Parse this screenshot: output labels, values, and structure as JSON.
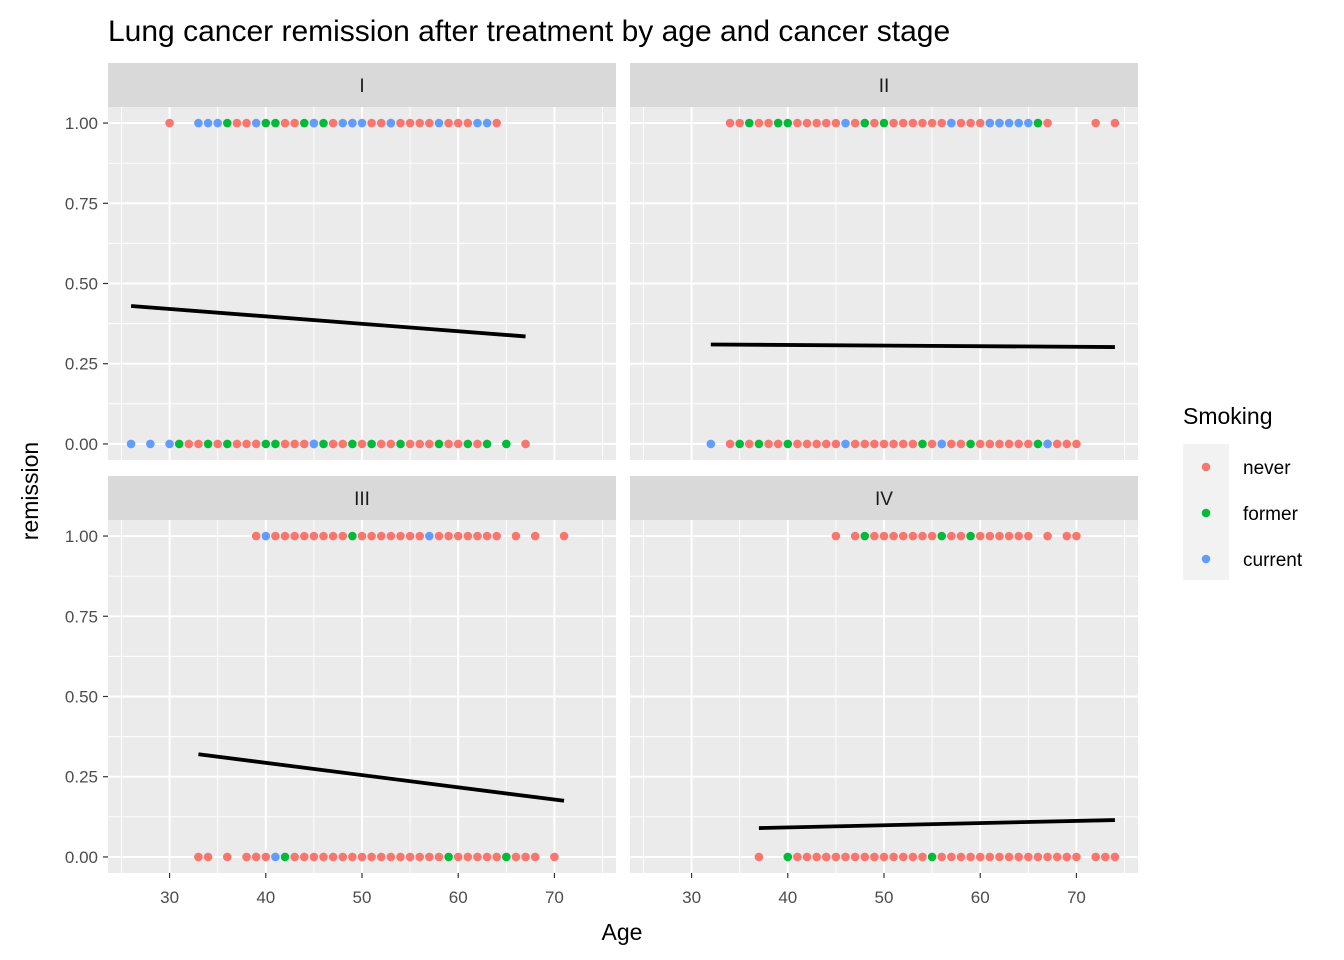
{
  "chart_data": {
    "type": "scatter",
    "title": "Lung cancer remission after treatment by age and cancer stage",
    "xlabel": "Age",
    "ylabel": "remission",
    "xlim": [
      23.6,
      76.4
    ],
    "ylim": [
      -0.05,
      1.05
    ],
    "x_ticks": [
      30,
      40,
      50,
      60,
      70
    ],
    "x_tick_labels": [
      "30",
      "40",
      "50",
      "60",
      "70"
    ],
    "y_ticks": [
      0,
      0.25,
      0.5,
      0.75,
      1.0
    ],
    "y_tick_labels": [
      "0.00",
      "0.25",
      "0.50",
      "0.75",
      "1.00"
    ],
    "grid": true,
    "legend": {
      "title": "Smoking",
      "position": "right",
      "entries": [
        {
          "label": "never",
          "color": "#F8766D"
        },
        {
          "label": "former",
          "color": "#00BA38"
        },
        {
          "label": "current",
          "color": "#619CFF"
        }
      ]
    },
    "line_color": "#000000",
    "panels": [
      {
        "label": "I",
        "fit_line": [
          [
            26,
            0.43
          ],
          [
            67,
            0.335
          ]
        ],
        "points_remission_1": {
          "never": [
            30,
            37,
            38,
            42,
            43,
            45,
            47,
            49,
            51,
            52,
            53,
            54,
            55,
            56,
            57,
            59,
            60,
            61,
            64
          ],
          "former": [
            36,
            40,
            41,
            44,
            46
          ],
          "current": [
            33,
            34,
            35,
            39,
            45,
            48,
            49,
            50,
            53,
            58,
            62,
            63
          ]
        },
        "points_remission_0": {
          "never": [
            32,
            33,
            35,
            37,
            38,
            39,
            42,
            43,
            44,
            45,
            47,
            48,
            50,
            52,
            53,
            55,
            56,
            57,
            59,
            60,
            62,
            67
          ],
          "former": [
            31,
            34,
            36,
            40,
            41,
            46,
            49,
            51,
            54,
            58,
            61,
            63,
            65
          ],
          "current": [
            26,
            28,
            30,
            45
          ]
        }
      },
      {
        "label": "II",
        "fit_line": [
          [
            32,
            0.31
          ],
          [
            74,
            0.302
          ]
        ],
        "points_remission_1": {
          "never": [
            34,
            35,
            37,
            38,
            39,
            41,
            42,
            43,
            44,
            45,
            47,
            48,
            49,
            51,
            52,
            53,
            54,
            55,
            56,
            57,
            58,
            59,
            60,
            61,
            62,
            66,
            67,
            72,
            74
          ],
          "former": [
            36,
            39,
            40,
            48,
            50,
            66
          ],
          "current": [
            46,
            57,
            61,
            62,
            63,
            64,
            65
          ]
        },
        "points_remission_0": {
          "never": [
            34,
            36,
            38,
            39,
            41,
            42,
            43,
            44,
            45,
            47,
            48,
            49,
            50,
            51,
            52,
            53,
            55,
            56,
            57,
            58,
            60,
            61,
            62,
            63,
            64,
            65,
            67,
            68,
            69,
            70
          ],
          "former": [
            35,
            37,
            40,
            54,
            59,
            66
          ],
          "current": [
            32,
            46,
            56,
            67
          ]
        }
      },
      {
        "label": "III",
        "fit_line": [
          [
            33,
            0.32
          ],
          [
            71,
            0.175
          ]
        ],
        "points_remission_1": {
          "never": [
            39,
            41,
            42,
            43,
            44,
            45,
            46,
            47,
            48,
            50,
            51,
            52,
            53,
            54,
            55,
            56,
            58,
            59,
            60,
            61,
            62,
            63,
            64,
            66,
            68,
            71
          ],
          "former": [
            49
          ],
          "current": [
            40,
            57
          ]
        },
        "points_remission_0": {
          "never": [
            33,
            34,
            36,
            38,
            39,
            40,
            43,
            44,
            45,
            46,
            47,
            48,
            49,
            50,
            51,
            52,
            53,
            54,
            55,
            56,
            57,
            58,
            60,
            61,
            62,
            63,
            64,
            66,
            67,
            68,
            70
          ],
          "former": [
            42,
            59,
            65
          ],
          "current": [
            41
          ]
        }
      },
      {
        "label": "IV",
        "fit_line": [
          [
            37,
            0.09
          ],
          [
            74,
            0.115
          ]
        ],
        "points_remission_1": {
          "never": [
            45,
            47,
            49,
            50,
            51,
            52,
            53,
            54,
            55,
            57,
            58,
            60,
            61,
            62,
            63,
            64,
            65,
            67,
            69,
            70
          ],
          "former": [
            48,
            56,
            59
          ],
          "current": []
        },
        "points_remission_0": {
          "never": [
            37,
            41,
            42,
            43,
            44,
            45,
            46,
            47,
            48,
            49,
            50,
            51,
            52,
            53,
            54,
            56,
            57,
            58,
            59,
            60,
            61,
            62,
            63,
            64,
            65,
            66,
            67,
            68,
            69,
            70,
            72,
            73,
            74
          ],
          "former": [
            40,
            55
          ],
          "current": []
        }
      }
    ]
  }
}
